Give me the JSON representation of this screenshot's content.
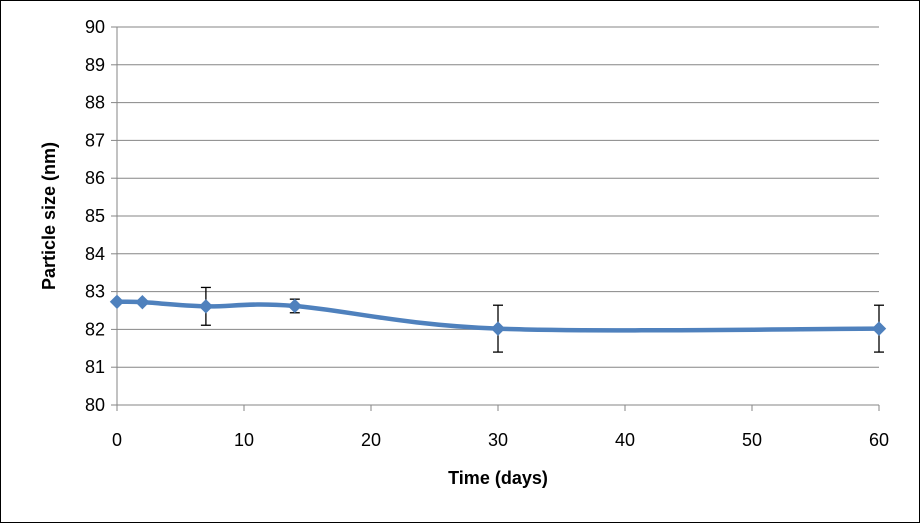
{
  "chart_data": {
    "type": "line",
    "title": "",
    "xlabel": "Time (days)",
    "ylabel": "Particle size (nm)",
    "xlim": [
      0,
      60
    ],
    "ylim": [
      80,
      90
    ],
    "xticks": [
      0,
      10,
      20,
      30,
      40,
      50,
      60
    ],
    "yticks": [
      80,
      81,
      82,
      83,
      84,
      85,
      86,
      87,
      88,
      89,
      90
    ],
    "grid": "horizontal",
    "legend": "none",
    "smooth": true,
    "series": [
      {
        "color": "#4F81BD",
        "marker": "diamond",
        "points": [
          {
            "x": 0,
            "y": 82.73,
            "err": 0.0
          },
          {
            "x": 2,
            "y": 82.72,
            "err": 0.0
          },
          {
            "x": 7,
            "y": 82.61,
            "err": 0.5
          },
          {
            "x": 14,
            "y": 82.62,
            "err": 0.18
          },
          {
            "x": 30,
            "y": 82.02,
            "err": 0.62
          },
          {
            "x": 60,
            "y": 82.02,
            "err": 0.62
          }
        ]
      }
    ]
  }
}
